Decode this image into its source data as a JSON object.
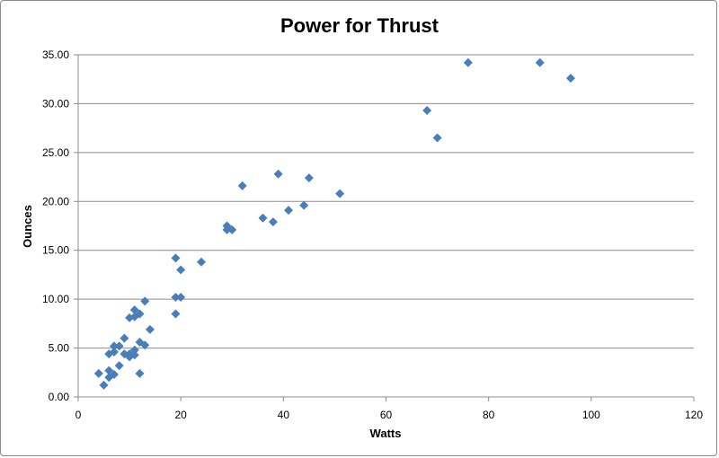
{
  "chart_data": {
    "type": "scatter",
    "title": "Power for Thrust",
    "xlabel": "Watts",
    "ylabel": "Ounces",
    "xlim": [
      0,
      120
    ],
    "ylim": [
      0,
      35
    ],
    "x_ticks": [
      "0",
      "20",
      "40",
      "60",
      "80",
      "100",
      "120"
    ],
    "y_ticks": [
      "0.00",
      "5.00",
      "10.00",
      "15.00",
      "20.00",
      "25.00",
      "30.00",
      "35.00"
    ],
    "grid": "horizontal",
    "legend": "none",
    "marker_color": "#4a7ebb",
    "points": [
      [
        4,
        2.4
      ],
      [
        5,
        1.2
      ],
      [
        6,
        2.0
      ],
      [
        6,
        2.7
      ],
      [
        6,
        4.4
      ],
      [
        7,
        2.3
      ],
      [
        7,
        4.6
      ],
      [
        7,
        5.2
      ],
      [
        8,
        3.2
      ],
      [
        8,
        5.2
      ],
      [
        9,
        4.4
      ],
      [
        9,
        6.0
      ],
      [
        10,
        4.1
      ],
      [
        10,
        4.4
      ],
      [
        10,
        8.1
      ],
      [
        11,
        4.3
      ],
      [
        11,
        4.8
      ],
      [
        11,
        8.2
      ],
      [
        11,
        8.9
      ],
      [
        12,
        2.4
      ],
      [
        12,
        5.6
      ],
      [
        12,
        8.5
      ],
      [
        13,
        5.3
      ],
      [
        13,
        9.8
      ],
      [
        14,
        6.9
      ],
      [
        19,
        8.5
      ],
      [
        19,
        10.2
      ],
      [
        19,
        14.2
      ],
      [
        20,
        10.2
      ],
      [
        20,
        13.0
      ],
      [
        24,
        13.8
      ],
      [
        29,
        17.1
      ],
      [
        29,
        17.5
      ],
      [
        30,
        17.1
      ],
      [
        32,
        21.6
      ],
      [
        36,
        18.3
      ],
      [
        38,
        17.9
      ],
      [
        39,
        22.8
      ],
      [
        41,
        19.1
      ],
      [
        44,
        19.6
      ],
      [
        45,
        22.4
      ],
      [
        51,
        20.8
      ],
      [
        68,
        29.3
      ],
      [
        70,
        26.5
      ],
      [
        76,
        34.2
      ],
      [
        90,
        34.2
      ],
      [
        96,
        32.6
      ]
    ]
  }
}
